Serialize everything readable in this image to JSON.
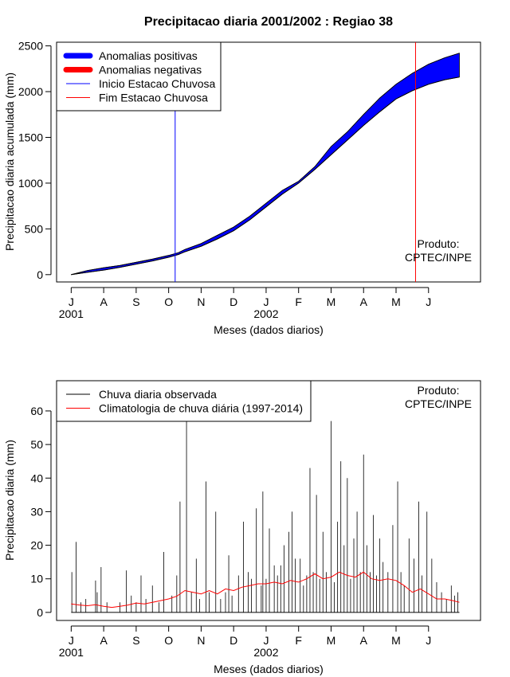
{
  "title": "Precipitacao diaria 2001/2002 : Regiao 38",
  "credit": [
    "Produto:",
    "CPTEC/INPE"
  ],
  "month_labels": [
    "J",
    "A",
    "S",
    "O",
    "N",
    "D",
    "J",
    "F",
    "M",
    "A",
    "M",
    "J"
  ],
  "year_labels": [
    {
      "label": "2001",
      "month_index": 0
    },
    {
      "label": "2002",
      "month_index": 6
    }
  ],
  "chart_data": [
    {
      "id": "accumulated",
      "type": "area",
      "xlabel": "Meses (dados diarios)",
      "ylabel": "Precipitacao diaria acumulada (mm)",
      "ylim": [
        -80,
        2540
      ],
      "yticks": [
        0,
        500,
        1000,
        1500,
        2000,
        2500
      ],
      "x_unit": "months since July 2001",
      "xlim": [
        -0.45,
        12.6
      ],
      "legend_position": "top-left",
      "legend": [
        {
          "label": "Anomalias positivas",
          "color": "#0000ff",
          "style": "thick"
        },
        {
          "label": "Anomalias negativas",
          "color": "#ff0000",
          "style": "thick"
        },
        {
          "label": "Inicio Estacao Chuvosa",
          "color": "#0000ff",
          "style": "thin"
        },
        {
          "label": "Fim Estacao Chuvosa",
          "color": "#ff0000",
          "style": "thin"
        }
      ],
      "series": [
        {
          "name": "Observada acumulada",
          "x": [
            0,
            0.5,
            1,
            1.5,
            2,
            2.5,
            3,
            3.3,
            3.5,
            4,
            4.5,
            5,
            5.5,
            6,
            6.5,
            7,
            7.5,
            8,
            8.5,
            9,
            9.5,
            10,
            10.5,
            11,
            11.5,
            11.95
          ],
          "values": [
            0,
            45,
            75,
            100,
            135,
            170,
            210,
            240,
            275,
            340,
            430,
            520,
            640,
            780,
            920,
            1020,
            1180,
            1400,
            1560,
            1750,
            1930,
            2080,
            2200,
            2300,
            2370,
            2420
          ]
        },
        {
          "name": "Climatologia acumulada",
          "x": [
            0,
            0.5,
            1,
            1.5,
            2,
            2.5,
            3,
            3.3,
            3.5,
            4,
            4.5,
            5,
            5.5,
            6,
            6.5,
            7,
            7.5,
            8,
            8.5,
            9,
            9.5,
            10,
            10.5,
            11,
            11.5,
            11.95
          ],
          "values": [
            0,
            25,
            50,
            80,
            115,
            150,
            190,
            220,
            250,
            310,
            390,
            480,
            600,
            740,
            880,
            1000,
            1150,
            1310,
            1470,
            1630,
            1780,
            1920,
            2010,
            2080,
            2130,
            2160
          ]
        }
      ],
      "markers": [
        {
          "name": "Inicio Estacao Chuvosa",
          "x": 3.2,
          "color": "#0000ff"
        },
        {
          "name": "Fim Estacao Chuvosa",
          "x": 10.6,
          "color": "#ff0000"
        }
      ]
    },
    {
      "id": "daily",
      "type": "line",
      "xlabel": "Meses (dados diarios)",
      "ylabel": "Precipitacao diaria (mm)",
      "ylim": [
        -2.4,
        69
      ],
      "yticks": [
        0,
        10,
        20,
        30,
        40,
        50,
        60
      ],
      "x_unit": "months since July 2001",
      "xlim": [
        -0.45,
        12.6
      ],
      "legend_position": "top-left",
      "legend": [
        {
          "label": "Chuva diaria observada",
          "color": "#000000"
        },
        {
          "label": "Climatologia de chuva diária (1997-2014)",
          "color": "#ff0000"
        }
      ],
      "observed_spikes": [
        {
          "x": 0.02,
          "y": 12
        },
        {
          "x": 0.15,
          "y": 21
        },
        {
          "x": 0.3,
          "y": 3
        },
        {
          "x": 0.45,
          "y": 4
        },
        {
          "x": 0.75,
          "y": 9.5
        },
        {
          "x": 0.8,
          "y": 6
        },
        {
          "x": 0.92,
          "y": 13.5
        },
        {
          "x": 1.1,
          "y": 3
        },
        {
          "x": 1.5,
          "y": 3
        },
        {
          "x": 1.7,
          "y": 12.5
        },
        {
          "x": 1.85,
          "y": 5
        },
        {
          "x": 2.0,
          "y": 3
        },
        {
          "x": 2.15,
          "y": 11
        },
        {
          "x": 2.3,
          "y": 4
        },
        {
          "x": 2.5,
          "y": 8
        },
        {
          "x": 2.7,
          "y": 3
        },
        {
          "x": 2.85,
          "y": 18
        },
        {
          "x": 3.1,
          "y": 5
        },
        {
          "x": 3.25,
          "y": 11
        },
        {
          "x": 3.35,
          "y": 33
        },
        {
          "x": 3.55,
          "y": 57
        },
        {
          "x": 3.7,
          "y": 6
        },
        {
          "x": 3.85,
          "y": 16
        },
        {
          "x": 3.95,
          "y": 4
        },
        {
          "x": 4.15,
          "y": 39
        },
        {
          "x": 4.25,
          "y": 6
        },
        {
          "x": 4.45,
          "y": 30
        },
        {
          "x": 4.6,
          "y": 4
        },
        {
          "x": 4.75,
          "y": 6
        },
        {
          "x": 4.85,
          "y": 17
        },
        {
          "x": 4.95,
          "y": 5
        },
        {
          "x": 5.15,
          "y": 11
        },
        {
          "x": 5.3,
          "y": 27
        },
        {
          "x": 5.45,
          "y": 12
        },
        {
          "x": 5.55,
          "y": 10
        },
        {
          "x": 5.7,
          "y": 31
        },
        {
          "x": 5.85,
          "y": 8
        },
        {
          "x": 5.9,
          "y": 36
        },
        {
          "x": 6.0,
          "y": 10
        },
        {
          "x": 6.1,
          "y": 25
        },
        {
          "x": 6.25,
          "y": 14
        },
        {
          "x": 6.35,
          "y": 11
        },
        {
          "x": 6.45,
          "y": 14
        },
        {
          "x": 6.55,
          "y": 20
        },
        {
          "x": 6.7,
          "y": 24
        },
        {
          "x": 6.8,
          "y": 30
        },
        {
          "x": 6.9,
          "y": 16
        },
        {
          "x": 7.05,
          "y": 16
        },
        {
          "x": 7.15,
          "y": 8
        },
        {
          "x": 7.25,
          "y": 11
        },
        {
          "x": 7.35,
          "y": 43
        },
        {
          "x": 7.45,
          "y": 12
        },
        {
          "x": 7.55,
          "y": 35
        },
        {
          "x": 7.65,
          "y": 10
        },
        {
          "x": 7.75,
          "y": 24
        },
        {
          "x": 7.85,
          "y": 12
        },
        {
          "x": 8.0,
          "y": 57
        },
        {
          "x": 8.1,
          "y": 9
        },
        {
          "x": 8.2,
          "y": 27
        },
        {
          "x": 8.3,
          "y": 45
        },
        {
          "x": 8.4,
          "y": 20
        },
        {
          "x": 8.5,
          "y": 40
        },
        {
          "x": 8.6,
          "y": 10
        },
        {
          "x": 8.7,
          "y": 22
        },
        {
          "x": 8.8,
          "y": 30
        },
        {
          "x": 8.9,
          "y": 12
        },
        {
          "x": 9.0,
          "y": 47
        },
        {
          "x": 9.1,
          "y": 20
        },
        {
          "x": 9.2,
          "y": 12
        },
        {
          "x": 9.3,
          "y": 29
        },
        {
          "x": 9.4,
          "y": 11
        },
        {
          "x": 9.5,
          "y": 22
        },
        {
          "x": 9.6,
          "y": 15
        },
        {
          "x": 9.75,
          "y": 12
        },
        {
          "x": 9.9,
          "y": 26
        },
        {
          "x": 10.05,
          "y": 39
        },
        {
          "x": 10.15,
          "y": 12
        },
        {
          "x": 10.25,
          "y": 8
        },
        {
          "x": 10.4,
          "y": 22
        },
        {
          "x": 10.55,
          "y": 16
        },
        {
          "x": 10.7,
          "y": 33
        },
        {
          "x": 10.8,
          "y": 11
        },
        {
          "x": 10.95,
          "y": 30
        },
        {
          "x": 11.1,
          "y": 16
        },
        {
          "x": 11.25,
          "y": 9
        },
        {
          "x": 11.4,
          "y": 6
        },
        {
          "x": 11.55,
          "y": 4
        },
        {
          "x": 11.7,
          "y": 8
        },
        {
          "x": 11.8,
          "y": 5
        },
        {
          "x": 11.9,
          "y": 6
        }
      ],
      "climatology": {
        "x": [
          0,
          0.25,
          0.5,
          0.75,
          1,
          1.25,
          1.5,
          1.75,
          2,
          2.25,
          2.5,
          2.75,
          3,
          3.25,
          3.5,
          3.75,
          4,
          4.25,
          4.5,
          4.75,
          5,
          5.25,
          5.5,
          5.75,
          6,
          6.25,
          6.5,
          6.75,
          7,
          7.25,
          7.5,
          7.75,
          8,
          8.25,
          8.5,
          8.75,
          9,
          9.25,
          9.5,
          9.75,
          10,
          10.25,
          10.5,
          10.75,
          11,
          11.25,
          11.5,
          11.75,
          11.95
        ],
        "values": [
          2.5,
          2.2,
          2,
          2.3,
          1.8,
          1.5,
          1.8,
          2.2,
          2.8,
          2.5,
          3,
          3.5,
          4,
          4.8,
          6.5,
          6,
          5.5,
          6.5,
          5.5,
          7,
          6.5,
          7.5,
          8,
          8.5,
          8.5,
          9,
          8.5,
          9.5,
          9,
          10,
          11.5,
          10,
          10.5,
          12,
          11,
          10.5,
          12,
          10,
          9.5,
          10,
          9.5,
          8,
          6,
          7,
          5.5,
          4,
          4,
          3.5,
          3
        ]
      }
    }
  ]
}
